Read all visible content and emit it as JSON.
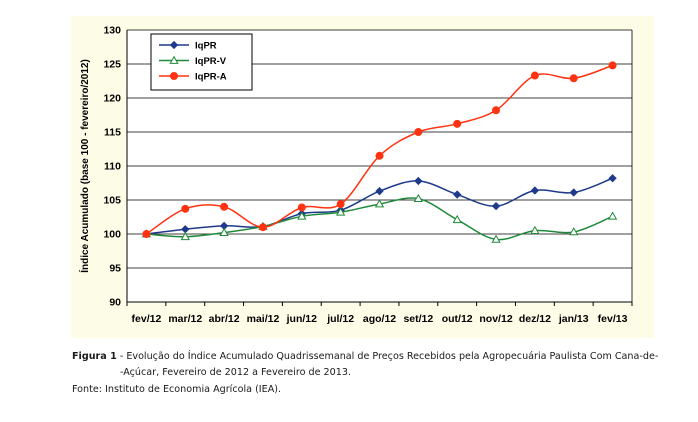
{
  "chart_data": {
    "type": "line",
    "ylabel": "Índice Acumulado (base 100 - fevereiro/2012)",
    "xlabel": "",
    "ylim": [
      90,
      130
    ],
    "yticks": [
      90,
      95,
      100,
      105,
      110,
      115,
      120,
      125,
      130
    ],
    "grid": "horizontal",
    "legend_position": "top-left",
    "categories": [
      "fev/12",
      "mar/12",
      "abr/12",
      "mai/12",
      "jun/12",
      "jul/12",
      "ago/12",
      "set/12",
      "out/12",
      "nov/12",
      "dez/12",
      "jan/13",
      "fev/13"
    ],
    "series": [
      {
        "name": "IqPR",
        "color": "#1f3a8a",
        "marker": "diamond",
        "values": [
          100.0,
          100.7,
          101.2,
          101.1,
          103.0,
          103.5,
          106.3,
          107.8,
          105.8,
          104.1,
          106.4,
          106.1,
          108.2
        ]
      },
      {
        "name": "IqPR-V",
        "color": "#1f8a3a",
        "marker": "triangle",
        "values": [
          100.0,
          99.6,
          100.2,
          101.1,
          102.6,
          103.2,
          104.4,
          105.2,
          102.1,
          99.2,
          100.5,
          100.3,
          102.6
        ]
      },
      {
        "name": "IqPR-A",
        "color": "#ff3311",
        "marker": "circle",
        "values": [
          100.0,
          103.7,
          104.0,
          101.0,
          103.9,
          104.4,
          111.5,
          115.0,
          116.2,
          118.2,
          123.3,
          122.9,
          124.8
        ]
      }
    ]
  },
  "caption": {
    "figure_label": "Figura 1",
    "line1": " - Evolução do Índice Acumulado Quadrissemanal de Preços Recebidos pela Agropecuária Paulista Com Cana-de-",
    "line2": "-Açúcar, Fevereiro de 2012 a Fevereiro de 2013.",
    "source": "Fonte: Instituto de Economia Agrícola (IEA)."
  }
}
